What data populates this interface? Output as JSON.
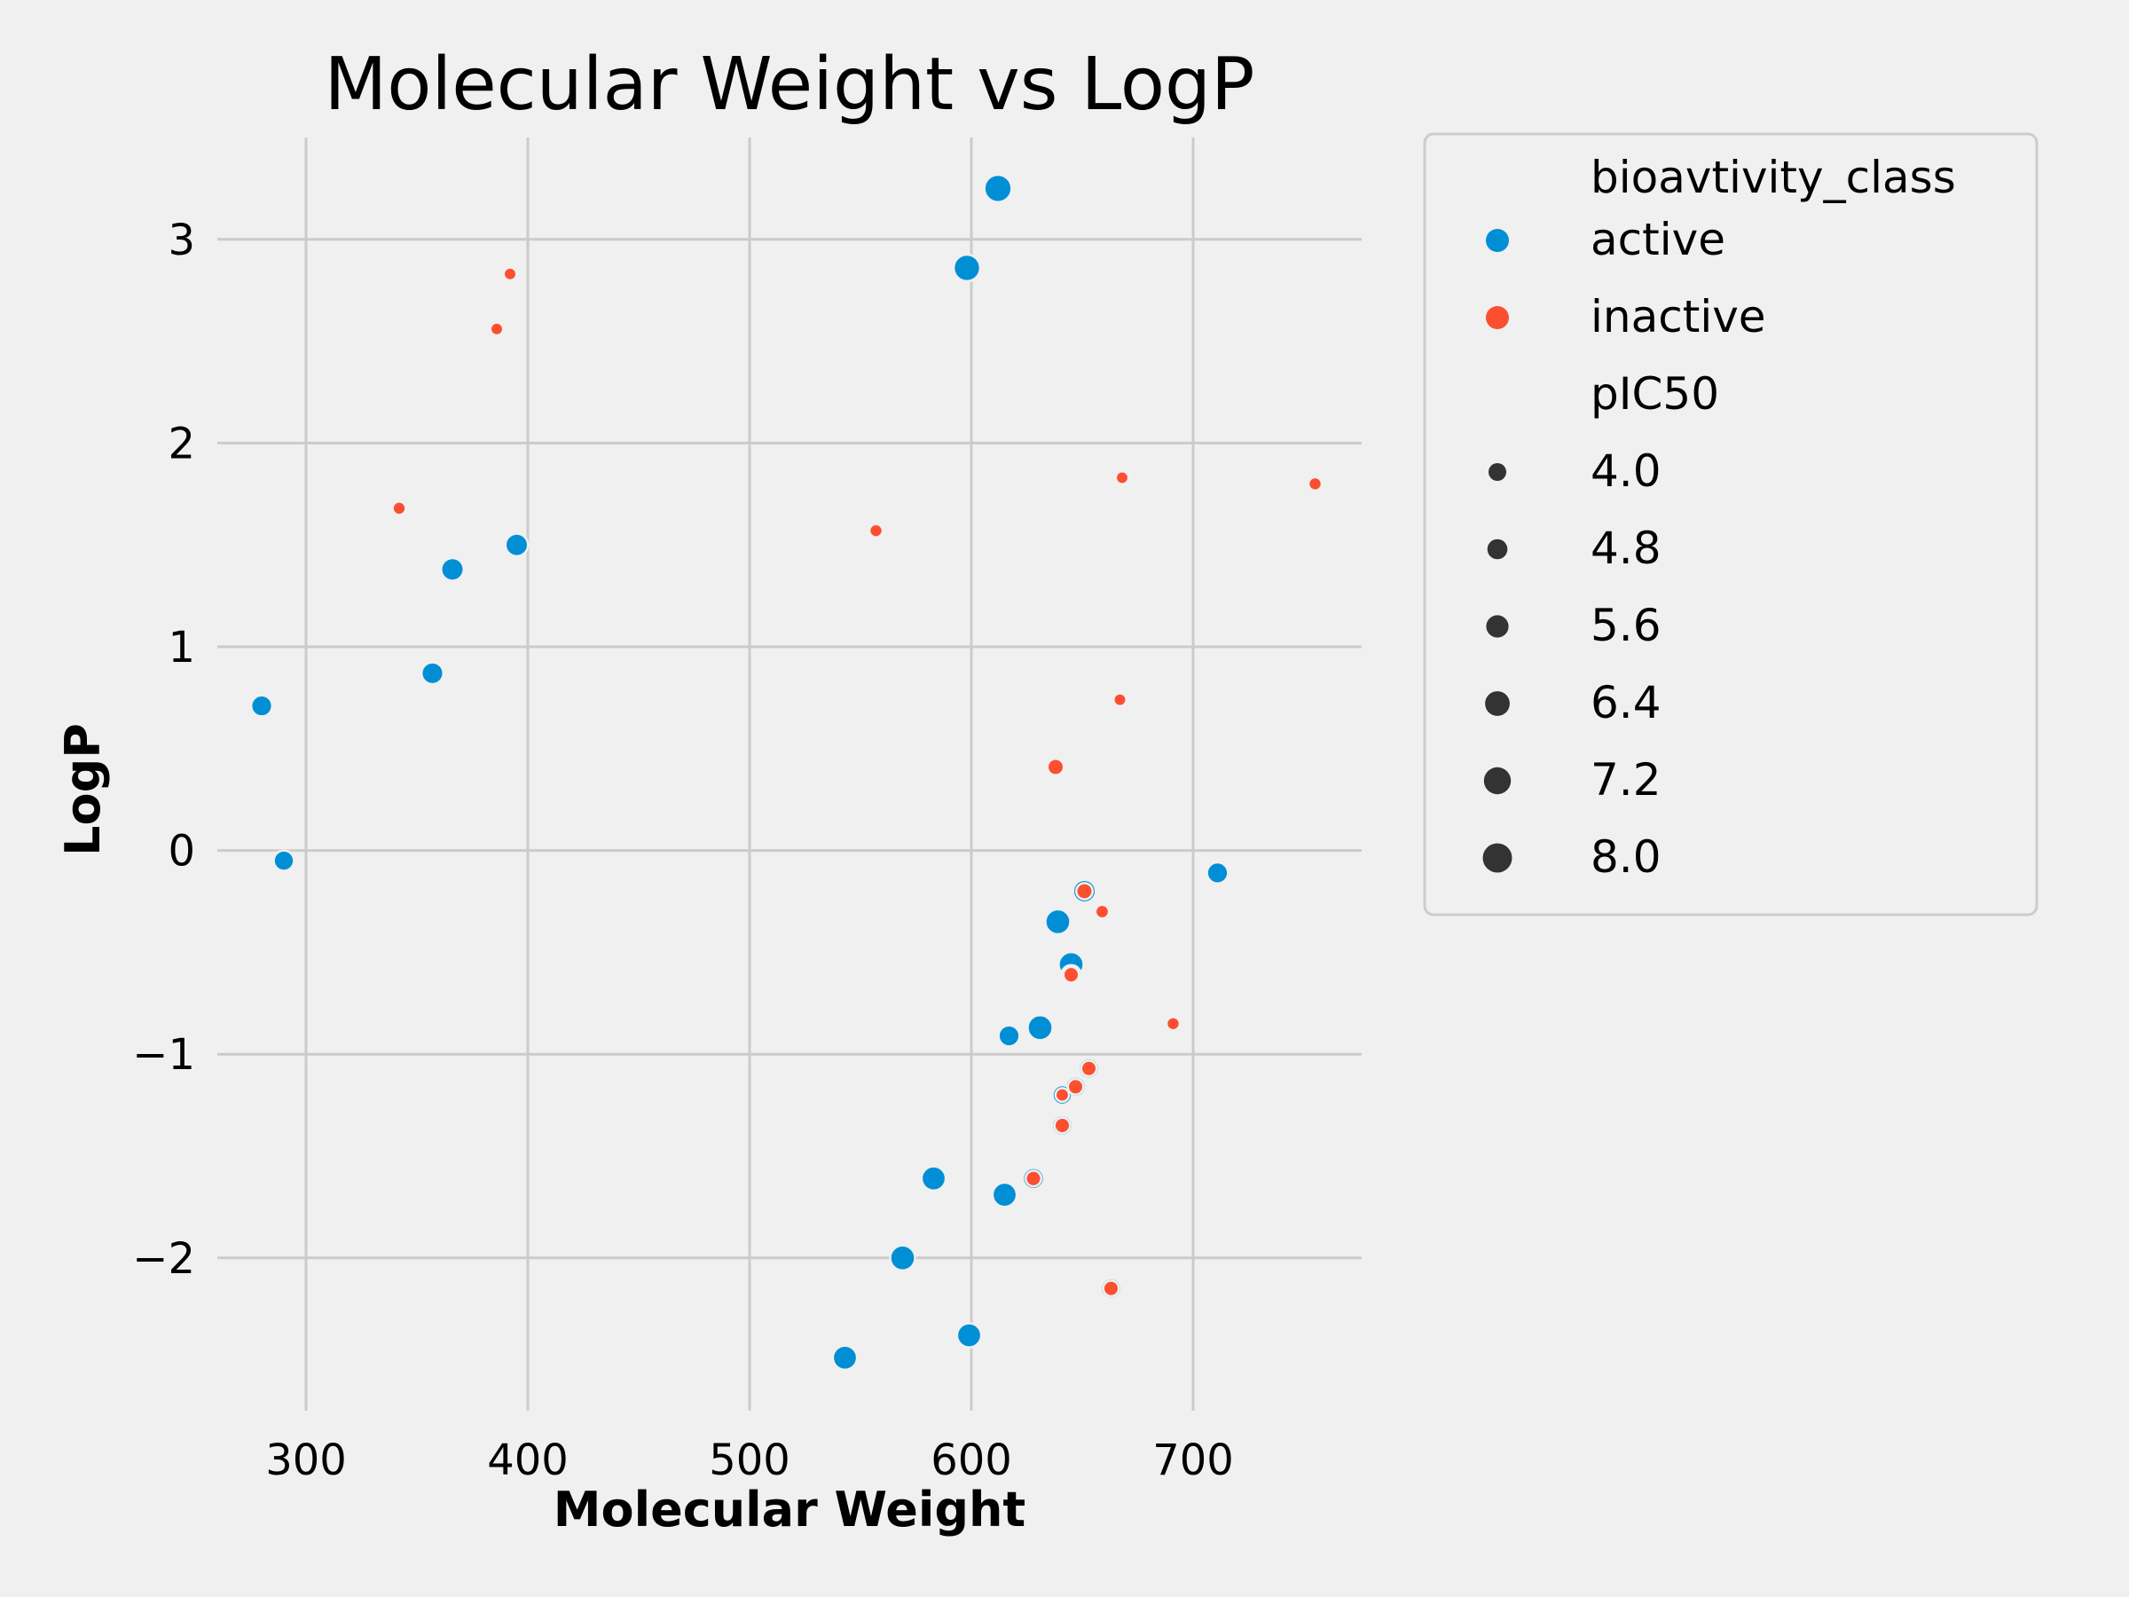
{
  "chart_data": {
    "type": "scatter",
    "title": "Molecular Weight vs LogP",
    "xlabel": "Molecular Weight",
    "ylabel": "LogP",
    "xlim": [
      260,
      776
    ],
    "ylim": [
      -2.75,
      3.5
    ],
    "xticks": [
      300,
      400,
      500,
      600,
      700
    ],
    "yticks": [
      -2,
      -1,
      0,
      1,
      2,
      3
    ],
    "grid": true,
    "legend": {
      "placement": "outside right",
      "hue_title": "bioavtivity_class",
      "hue_entries": [
        {
          "label": "active",
          "color": "#008fd5"
        },
        {
          "label": "inactive",
          "color": "#fc4f30"
        }
      ],
      "size_title": "pIC50",
      "size_entries": [
        "4.0",
        "4.8",
        "5.6",
        "6.4",
        "7.2",
        "8.0"
      ],
      "size_color": "#333333"
    },
    "series": [
      {
        "name": "active",
        "color": "#008fd5",
        "points": [
          {
            "x": 612,
            "y": 3.25,
            "pIC50": 7.8
          },
          {
            "x": 598,
            "y": 2.86,
            "pIC50": 7.6
          },
          {
            "x": 395,
            "y": 1.5,
            "pIC50": 6.6
          },
          {
            "x": 366,
            "y": 1.38,
            "pIC50": 6.6
          },
          {
            "x": 357,
            "y": 0.87,
            "pIC50": 6.4
          },
          {
            "x": 280,
            "y": 0.71,
            "pIC50": 6.2
          },
          {
            "x": 290,
            "y": -0.05,
            "pIC50": 6.0
          },
          {
            "x": 711,
            "y": -0.11,
            "pIC50": 6.2
          },
          {
            "x": 651,
            "y": -0.2,
            "pIC50": 6.6
          },
          {
            "x": 639,
            "y": -0.35,
            "pIC50": 7.2
          },
          {
            "x": 645,
            "y": -0.56,
            "pIC50": 7.2
          },
          {
            "x": 645,
            "y": -0.61,
            "pIC50": 5.8
          },
          {
            "x": 631,
            "y": -0.87,
            "pIC50": 7.2
          },
          {
            "x": 617,
            "y": -0.91,
            "pIC50": 6.2
          },
          {
            "x": 653,
            "y": -1.07,
            "pIC50": 6.0
          },
          {
            "x": 647,
            "y": -1.16,
            "pIC50": 6.0
          },
          {
            "x": 641,
            "y": -1.2,
            "pIC50": 5.8
          },
          {
            "x": 641,
            "y": -1.35,
            "pIC50": 6.0
          },
          {
            "x": 583,
            "y": -1.61,
            "pIC50": 7.0
          },
          {
            "x": 628,
            "y": -1.61,
            "pIC50": 6.2
          },
          {
            "x": 615,
            "y": -1.69,
            "pIC50": 7.0
          },
          {
            "x": 569,
            "y": -2.0,
            "pIC50": 7.2
          },
          {
            "x": 663,
            "y": -2.15,
            "pIC50": 6.0
          },
          {
            "x": 599,
            "y": -2.38,
            "pIC50": 7.0
          },
          {
            "x": 543,
            "y": -2.49,
            "pIC50": 7.0
          }
        ]
      },
      {
        "name": "inactive",
        "color": "#fc4f30",
        "points": [
          {
            "x": 392,
            "y": 2.83,
            "pIC50": 4.1
          },
          {
            "x": 386,
            "y": 2.56,
            "pIC50": 4.1
          },
          {
            "x": 668,
            "y": 1.83,
            "pIC50": 4.1
          },
          {
            "x": 755,
            "y": 1.8,
            "pIC50": 4.2
          },
          {
            "x": 342,
            "y": 1.68,
            "pIC50": 4.2
          },
          {
            "x": 557,
            "y": 1.57,
            "pIC50": 4.2
          },
          {
            "x": 667,
            "y": 0.74,
            "pIC50": 4.1
          },
          {
            "x": 638,
            "y": 0.41,
            "pIC50": 5.0
          },
          {
            "x": 651,
            "y": -0.2,
            "pIC50": 5.0
          },
          {
            "x": 659,
            "y": -0.3,
            "pIC50": 4.3
          },
          {
            "x": 645,
            "y": -0.61,
            "pIC50": 4.8
          },
          {
            "x": 691,
            "y": -0.85,
            "pIC50": 4.2
          },
          {
            "x": 653,
            "y": -1.07,
            "pIC50": 4.8
          },
          {
            "x": 647,
            "y": -1.16,
            "pIC50": 4.8
          },
          {
            "x": 641,
            "y": -1.2,
            "pIC50": 4.3
          },
          {
            "x": 641,
            "y": -1.35,
            "pIC50": 4.8
          },
          {
            "x": 628,
            "y": -1.61,
            "pIC50": 4.8
          },
          {
            "x": 663,
            "y": -2.15,
            "pIC50": 4.8
          }
        ]
      }
    ]
  }
}
